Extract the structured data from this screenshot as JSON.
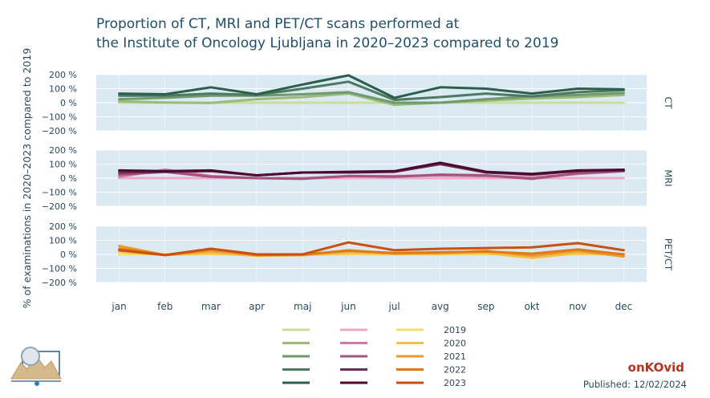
{
  "title_line1": "Proportion of CT, MRI and PET/CT scans performed at",
  "title_line2": "the Institute of Oncology Ljubljana in 2020–2023 compared to 2019",
  "brand": "onKOvid",
  "published": "Published: 12/02/2024",
  "colors": {
    "panel_bg": "#dbe9f3",
    "grid": "#ffffff",
    "axis_text": "#2a4a5e",
    "CT": [
      "#c9de9c",
      "#9abb7a",
      "#6f9a6d",
      "#4b7a61",
      "#2c5e4c"
    ],
    "MRI": [
      "#f0a9c9",
      "#d07aa1",
      "#a2547a",
      "#6e2a50",
      "#4a0a31"
    ],
    "PET/CT": [
      "#f8dc6c",
      "#f3bf45",
      "#eb9a2a",
      "#df7a1c",
      "#c9500f"
    ]
  },
  "chart_data": {
    "type": "line",
    "ylabel": "% of examinations in 2020–2023 compared to 2019",
    "categories": [
      "jan",
      "feb",
      "mar",
      "apr",
      "maj",
      "jun",
      "jul",
      "avg",
      "sep",
      "okt",
      "nov",
      "dec"
    ],
    "ylim": [
      -200,
      200
    ],
    "yticks": [
      "200 %",
      "100 %",
      "0 %",
      "−100 %",
      "−200 %"
    ],
    "grid": true,
    "legend": {
      "placement": "bottom",
      "years": [
        "2019",
        "2020",
        "2021",
        "2022",
        "2023"
      ]
    },
    "panels": [
      {
        "label": "CT",
        "series": [
          {
            "name": "2019",
            "values": [
              0,
              0,
              0,
              0,
              0,
              0,
              0,
              0,
              0,
              0,
              0,
              0
            ]
          },
          {
            "name": "2020",
            "values": [
              10,
              2,
              -2,
              25,
              40,
              65,
              -15,
              0,
              15,
              30,
              40,
              55
            ]
          },
          {
            "name": "2021",
            "values": [
              25,
              35,
              50,
              50,
              60,
              75,
              0,
              0,
              25,
              45,
              55,
              70
            ]
          },
          {
            "name": "2022",
            "values": [
              50,
              50,
              65,
              55,
              100,
              150,
              20,
              40,
              65,
              45,
              75,
              90
            ]
          },
          {
            "name": "2023",
            "values": [
              65,
              60,
              110,
              60,
              130,
              195,
              35,
              110,
              100,
              65,
              100,
              95
            ]
          }
        ]
      },
      {
        "label": "MRI",
        "series": [
          {
            "name": "2019",
            "values": [
              0,
              0,
              0,
              0,
              0,
              0,
              0,
              0,
              0,
              0,
              0,
              0
            ]
          },
          {
            "name": "2020",
            "values": [
              10,
              60,
              15,
              0,
              0,
              15,
              15,
              20,
              15,
              5,
              30,
              50
            ]
          },
          {
            "name": "2021",
            "values": [
              25,
              45,
              10,
              0,
              -5,
              15,
              10,
              25,
              20,
              -5,
              35,
              50
            ]
          },
          {
            "name": "2022",
            "values": [
              40,
              45,
              50,
              20,
              40,
              40,
              45,
              100,
              40,
              25,
              50,
              55
            ]
          },
          {
            "name": "2023",
            "values": [
              55,
              50,
              55,
              20,
              40,
              45,
              50,
              110,
              45,
              30,
              55,
              60
            ]
          }
        ]
      },
      {
        "label": "PET/CT",
        "series": [
          {
            "name": "2019",
            "values": [
              0,
              0,
              0,
              0,
              0,
              0,
              0,
              0,
              0,
              0,
              0,
              0
            ]
          },
          {
            "name": "2020",
            "values": [
              20,
              -5,
              10,
              -10,
              -5,
              10,
              5,
              5,
              10,
              -25,
              10,
              0
            ]
          },
          {
            "name": "2021",
            "values": [
              60,
              -5,
              25,
              -5,
              -5,
              30,
              5,
              10,
              25,
              -10,
              25,
              -15
            ]
          },
          {
            "name": "2022",
            "values": [
              40,
              -5,
              40,
              -5,
              0,
              25,
              10,
              15,
              20,
              5,
              35,
              0
            ]
          },
          {
            "name": "2023",
            "values": [
              30,
              -5,
              40,
              0,
              0,
              85,
              30,
              40,
              45,
              50,
              80,
              30
            ]
          }
        ]
      }
    ]
  }
}
